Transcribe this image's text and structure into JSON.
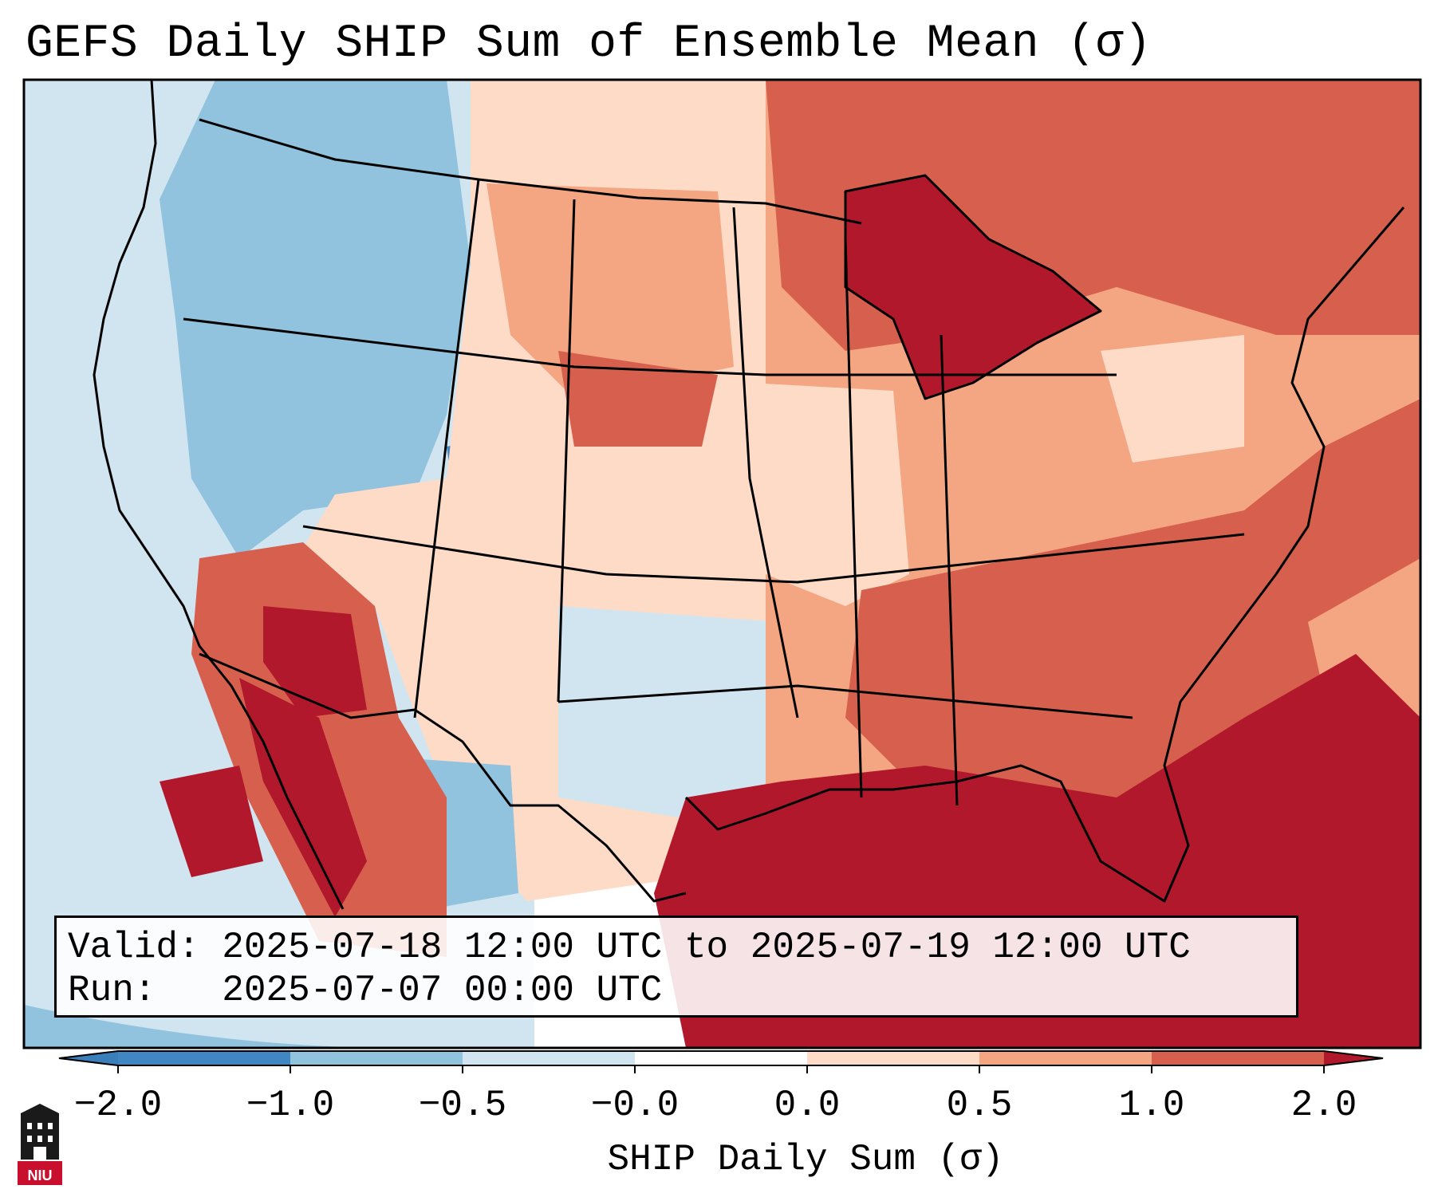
{
  "title": "GEFS Daily SHIP Sum of Ensemble Mean (σ)",
  "info": {
    "valid_label": "Valid:",
    "valid_value": "2025-07-18 12:00 UTC to 2025-07-19 12:00 UTC",
    "run_label": "Run:",
    "run_value": "2025-07-07 00:00 UTC"
  },
  "colorbar": {
    "title": "SHIP Daily Sum (σ)",
    "tick_labels": [
      "−2.0",
      "−1.0",
      "−0.5",
      "−0.0",
      "0.0",
      "0.5",
      "1.0",
      "2.0"
    ],
    "bins": [
      {
        "range": "< -2.0",
        "color": "#3b7fba"
      },
      {
        "range": "-2.0 to -1.0",
        "color": "#3f86c2"
      },
      {
        "range": "-1.0 to -0.5",
        "color": "#92c3de"
      },
      {
        "range": "-0.5 to -0.0",
        "color": "#d1e5f0"
      },
      {
        "range": "-0.0 to 0.0",
        "color": "#ffffff"
      },
      {
        "range": "0.0 to 0.5",
        "color": "#fddbc7"
      },
      {
        "range": "0.5 to 1.0",
        "color": "#f4a582"
      },
      {
        "range": "1.0 to 2.0",
        "color": "#d6604d"
      },
      {
        "range": "> 2.0",
        "color": "#b2182b"
      }
    ]
  },
  "logo": {
    "text": "NIU",
    "icon": "university-tower-icon"
  },
  "map": {
    "region": "Contiguous United States",
    "colors": {
      "strong_negative": "#3f86c2",
      "negative": "#92c3de",
      "weak_negative": "#d1e5f0",
      "weak_positive": "#fddbc7",
      "positive": "#f4a582",
      "strong_positive": "#d6604d",
      "extreme_positive": "#b2182b"
    }
  }
}
